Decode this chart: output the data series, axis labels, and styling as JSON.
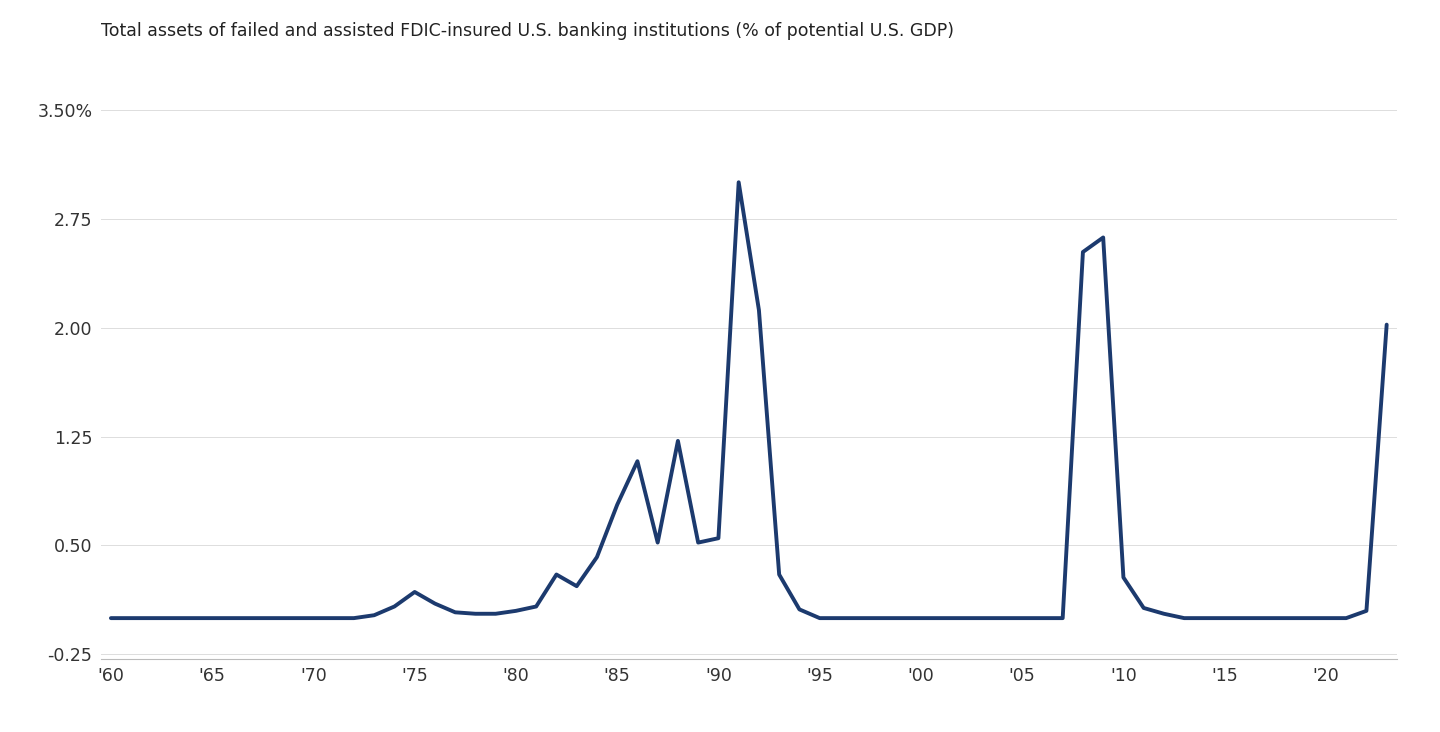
{
  "title": "Total assets of failed and assisted FDIC-insured U.S. banking institutions (% of potential U.S. GDP)",
  "line_color": "#1c3a6e",
  "line_width": 2.8,
  "background_color": "#ffffff",
  "xlim": [
    1959.5,
    2023.5
  ],
  "ylim": [
    -0.28,
    3.65
  ],
  "yticks": [
    -0.25,
    0.5,
    1.25,
    2.0,
    2.75,
    3.5
  ],
  "ytick_labels": [
    "-0.25",
    "0.50",
    "1.25",
    "2.00",
    "2.75",
    "3.50%"
  ],
  "xticks": [
    1960,
    1965,
    1970,
    1975,
    1980,
    1985,
    1990,
    1995,
    2000,
    2005,
    2010,
    2015,
    2020
  ],
  "xtick_labels": [
    "'60",
    "'65",
    "'70",
    "'75",
    "'80",
    "'85",
    "'90",
    "'95",
    "'00",
    "'05",
    "'10",
    "'15",
    "'20"
  ],
  "years": [
    1960,
    1961,
    1962,
    1963,
    1964,
    1965,
    1966,
    1967,
    1968,
    1969,
    1970,
    1971,
    1972,
    1973,
    1974,
    1975,
    1976,
    1977,
    1978,
    1979,
    1980,
    1981,
    1982,
    1983,
    1984,
    1985,
    1986,
    1987,
    1988,
    1989,
    1990,
    1991,
    1992,
    1993,
    1994,
    1995,
    1996,
    1997,
    1998,
    1999,
    2000,
    2001,
    2002,
    2003,
    2004,
    2005,
    2006,
    2007,
    2008,
    2009,
    2010,
    2011,
    2012,
    2013,
    2014,
    2015,
    2016,
    2017,
    2018,
    2019,
    2020,
    2021,
    2022,
    2023
  ],
  "values": [
    0.0,
    0.0,
    0.0,
    0.0,
    0.0,
    0.0,
    0.0,
    0.0,
    0.0,
    0.0,
    0.0,
    0.0,
    0.0,
    0.02,
    0.08,
    0.18,
    0.1,
    0.04,
    0.03,
    0.03,
    0.05,
    0.08,
    0.3,
    0.22,
    0.42,
    0.78,
    1.08,
    0.52,
    1.22,
    0.52,
    0.55,
    3.0,
    2.12,
    0.3,
    0.06,
    0.0,
    0.0,
    0.0,
    0.0,
    0.0,
    0.0,
    0.0,
    0.0,
    0.0,
    0.0,
    0.0,
    0.0,
    0.0,
    2.52,
    2.62,
    0.28,
    0.07,
    0.03,
    0.0,
    0.0,
    0.0,
    0.0,
    0.0,
    0.0,
    0.0,
    0.0,
    0.0,
    0.05,
    2.02
  ]
}
